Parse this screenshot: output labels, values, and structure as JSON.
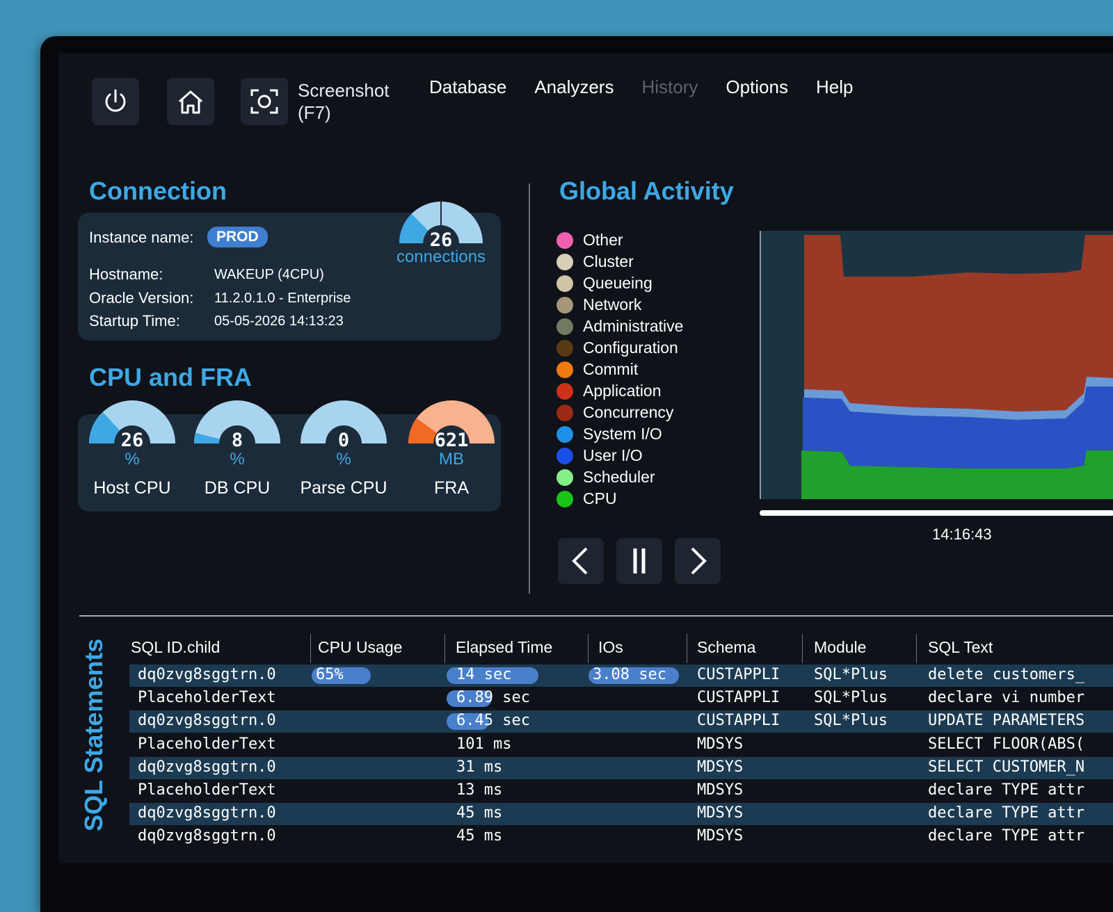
{
  "toolbar": {
    "screenshot_label_line1": "Screenshot",
    "screenshot_label_line2": "(F7)"
  },
  "menu": {
    "items": [
      {
        "label": "Database",
        "enabled": true
      },
      {
        "label": "Analyzers",
        "enabled": true
      },
      {
        "label": "History",
        "enabled": false
      },
      {
        "label": "Options",
        "enabled": true
      },
      {
        "label": "Help",
        "enabled": true
      }
    ]
  },
  "connection": {
    "title": "Connection",
    "instance_label": "Instance name:",
    "instance_value": "PROD",
    "hostname_label": "Hostname:",
    "hostname_value": "WAKEUP (4CPU)",
    "version_label": "Oracle Version:",
    "version_value": "11.2.0.1.0 - Enterprise",
    "startup_label": "Startup Time:",
    "startup_value": "05-05-2026 14:13:23",
    "connections_value": "26",
    "connections_label": "connections"
  },
  "cpu_fra": {
    "title": "CPU and FRA",
    "gauges": [
      {
        "value": "26",
        "unit": "%",
        "label": "Host CPU",
        "fraction": 0.26,
        "color": "#3ea8e5",
        "track": "#a9d4f0"
      },
      {
        "value": "8",
        "unit": "%",
        "label": "DB CPU",
        "fraction": 0.08,
        "color": "#3ea8e5",
        "track": "#a9d4f0"
      },
      {
        "value": "0",
        "unit": "%",
        "label": "Parse CPU",
        "fraction": 0.0,
        "color": "#3ea8e5",
        "track": "#a9d4f0"
      },
      {
        "value": "621",
        "unit": "MB",
        "label": "FRA",
        "fraction": 0.2,
        "color": "#f06a24",
        "track": "#f8b28e"
      }
    ]
  },
  "global_activity": {
    "title": "Global Activity",
    "legend": [
      {
        "label": "Other",
        "color": "#f060b0"
      },
      {
        "label": "Cluster",
        "color": "#d8cfb8"
      },
      {
        "label": "Queueing",
        "color": "#cfc4a6"
      },
      {
        "label": "Network",
        "color": "#a6977a"
      },
      {
        "label": "Administrative",
        "color": "#737a62"
      },
      {
        "label": "Configuration",
        "color": "#5a3a12"
      },
      {
        "label": "Commit",
        "color": "#f07a10"
      },
      {
        "label": "Application",
        "color": "#d0301a"
      },
      {
        "label": "Concurrency",
        "color": "#9a2a14"
      },
      {
        "label": "System I/O",
        "color": "#1e90e8"
      },
      {
        "label": "User I/O",
        "color": "#1a4ee8"
      },
      {
        "label": "Scheduler",
        "color": "#86ee86"
      },
      {
        "label": "CPU",
        "color": "#18c418"
      }
    ],
    "timestamp": "14:16:43",
    "controls": [
      "previous",
      "pause",
      "next"
    ]
  },
  "sql": {
    "title": "SQL Statements",
    "columns": [
      "SQL ID.child",
      "CPU Usage",
      "Elapsed Time",
      "IOs",
      "Schema",
      "Module",
      "SQL Text"
    ],
    "rows": [
      {
        "id": "dq0zvg8sggtrn.0",
        "cpu": "65%",
        "cpu_bar": 0.65,
        "elapsed": "14 sec",
        "elapsed_bar": 1.0,
        "ios": "3.08 sec",
        "ios_bar": 1.0,
        "schema": "CUSTAPPLI",
        "module": "SQL*Plus",
        "text": "delete customers_"
      },
      {
        "id": "PlaceholderText",
        "cpu": "",
        "cpu_bar": 0,
        "elapsed": "6.89 sec",
        "elapsed_bar": 0.49,
        "ios": "",
        "ios_bar": 0,
        "schema": "CUSTAPPLI",
        "module": "SQL*Plus",
        "text": "declare vi number"
      },
      {
        "id": "dq0zvg8sggtrn.0",
        "cpu": "",
        "cpu_bar": 0,
        "elapsed": "6.45 sec",
        "elapsed_bar": 0.46,
        "ios": "",
        "ios_bar": 0,
        "schema": "CUSTAPPLI",
        "module": "SQL*Plus",
        "text": "UPDATE PARAMETERS"
      },
      {
        "id": "PlaceholderText",
        "cpu": "",
        "cpu_bar": 0,
        "elapsed": "101 ms",
        "elapsed_bar": 0,
        "ios": "",
        "ios_bar": 0,
        "schema": "MDSYS",
        "module": "",
        "text": "SELECT FLOOR(ABS("
      },
      {
        "id": "dq0zvg8sggtrn.0",
        "cpu": "",
        "cpu_bar": 0,
        "elapsed": "31 ms",
        "elapsed_bar": 0,
        "ios": "",
        "ios_bar": 0,
        "schema": "MDSYS",
        "module": "",
        "text": "SELECT CUSTOMER_N"
      },
      {
        "id": "PlaceholderText",
        "cpu": "",
        "cpu_bar": 0,
        "elapsed": "13 ms",
        "elapsed_bar": 0,
        "ios": "",
        "ios_bar": 0,
        "schema": "MDSYS",
        "module": "",
        "text": "declare TYPE attr"
      },
      {
        "id": "dq0zvg8sggtrn.0",
        "cpu": "",
        "cpu_bar": 0,
        "elapsed": "45 ms",
        "elapsed_bar": 0,
        "ios": "",
        "ios_bar": 0,
        "schema": "MDSYS",
        "module": "",
        "text": "declare TYPE attr"
      },
      {
        "id": "dq0zvg8sggtrn.0",
        "cpu": "",
        "cpu_bar": 0,
        "elapsed": "45 ms",
        "elapsed_bar": 0,
        "ios": "",
        "ios_bar": 0,
        "schema": "MDSYS",
        "module": "",
        "text": "declare TYPE attr"
      }
    ]
  }
}
